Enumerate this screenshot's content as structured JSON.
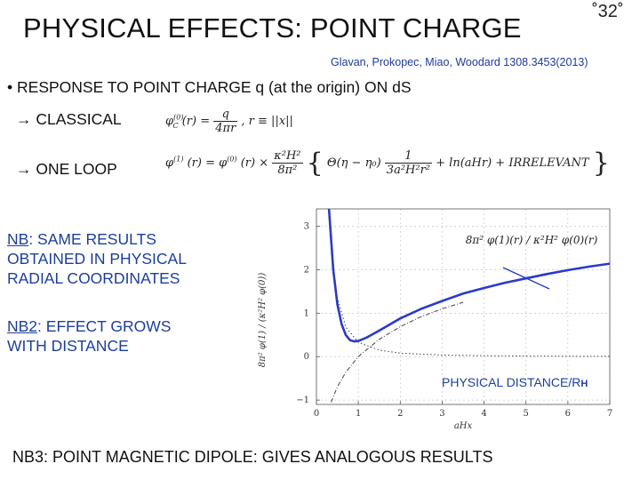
{
  "header": {
    "title": "PHYSICAL EFFECTS: POINT CHARGE",
    "slide_number": "˚32˚",
    "citation": "Glavan, Prokopec, Miao, Woodard 1308.3453(2013)"
  },
  "body": {
    "bullet_symbol": "•",
    "bullet_text": "RESPONSE TO POINT CHARGE q (at the origin) ON dS",
    "classical_label": "CLASSICAL",
    "one_loop_label": "ONE LOOP",
    "arrow_symbol": "→",
    "nb1_prefix": "NB",
    "nb1_rest": ": SAME RESULTS",
    "nb1_line2": "OBTAINED IN PHYSICAL",
    "nb1_line3": "RADIAL COORDINATES",
    "nb2_prefix": "NB2",
    "nb2_rest": ": EFFECT GROWS",
    "nb2_line2": "WITH DISTANCE",
    "nb3": "NB3: POINT MAGNETIC DIPOLE: GIVES ANALOGOUS RESULTS"
  },
  "equations": {
    "classical": {
      "lhs": "φ",
      "lhs_sup": "(0)",
      "lhs_sub": "C",
      "arg": "(r) =",
      "num": "q",
      "den": "4πr",
      "tail": ", r ≡ ||x||"
    },
    "one_loop": {
      "lhs": "φ",
      "lhs_sup": "(1)",
      "lhs_sub": "C",
      "arg": "(r) = φ",
      "mid_sup": "(0)",
      "mid_sub": "C",
      "mid_arg": "(r) ×",
      "coef_num": "κ²H²",
      "coef_den": "8π²",
      "brace_open": "{",
      "theta": "Θ(η − η₀)",
      "frac_num": "1",
      "frac_den": "3a²H²r²",
      "ln": "+ ln(aHr) + IRRELEVANT",
      "brace_close": "}"
    }
  },
  "chart_data": {
    "type": "line",
    "title": "",
    "xlabel": "aHx",
    "ylabel": "8π² φ(1) / (κ²H² φ(0))",
    "x_ticks": [
      "0",
      "1",
      "2",
      "3",
      "4",
      "5",
      "6",
      "7"
    ],
    "y_ticks": [
      "−1",
      "0",
      "1",
      "2",
      "3"
    ],
    "xlim": [
      0,
      7
    ],
    "ylim": [
      -1.1,
      3.4
    ],
    "annotation": "8π² φ(1)(r) / κ²H² φ(0)(r)",
    "physical_distance_label": "PHYSICAL DISTANCE/R",
    "physical_distance_sub": "H",
    "grid": true,
    "series": [
      {
        "style": "solid",
        "color": "#2a3bc9",
        "x": [
          0.3,
          0.4,
          0.5,
          0.6,
          0.7,
          0.8,
          0.9,
          1.0,
          1.2,
          1.5,
          2.0,
          2.5,
          3.0,
          3.5,
          4.0,
          4.5,
          5.0,
          5.5,
          6.0,
          6.5,
          7.0
        ],
        "y": [
          3.4,
          2.0,
          1.2,
          0.75,
          0.5,
          0.38,
          0.35,
          0.36,
          0.44,
          0.6,
          0.88,
          1.1,
          1.28,
          1.45,
          1.58,
          1.7,
          1.8,
          1.9,
          1.99,
          2.07,
          2.14
        ]
      },
      {
        "style": "dotted",
        "color": "#444444",
        "x": [
          0.4,
          0.5,
          0.7,
          1.0,
          1.5,
          2.0,
          3.0,
          4.0,
          5.0,
          6.0,
          7.0
        ],
        "y": [
          2.1,
          1.35,
          0.68,
          0.33,
          0.15,
          0.08,
          0.037,
          0.021,
          0.013,
          0.009,
          0.007
        ]
      },
      {
        "style": "dash-dot",
        "color": "#444444",
        "x": [
          0.35,
          0.5,
          0.7,
          1.0,
          1.5,
          2.0,
          2.5,
          3.0,
          3.5
        ],
        "y": [
          -1.05,
          -0.69,
          -0.36,
          0.0,
          0.4,
          0.69,
          0.92,
          1.1,
          1.25
        ]
      }
    ]
  }
}
